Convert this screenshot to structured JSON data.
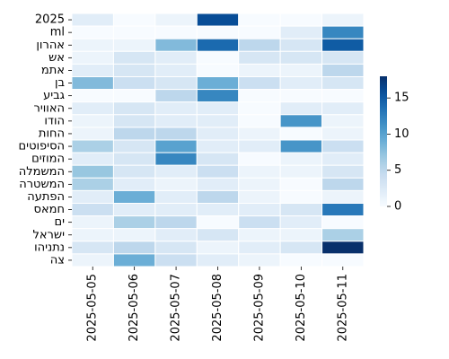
{
  "chart_data": {
    "type": "heatmap",
    "title": "",
    "xlabel": "",
    "ylabel": "",
    "columns": [
      "2025-05-05",
      "2025-05-06",
      "2025-05-07",
      "2025-05-08",
      "2025-05-09",
      "2025-05-10",
      "2025-05-11"
    ],
    "rows": [
      "2025",
      "ml",
      "אהרון",
      "אש",
      "אתמ",
      "בן",
      "גביע",
      "האוויר",
      "הודו",
      "החות",
      "הסיפוטים",
      "המוזים",
      "המשמלה",
      "המשטרה",
      "הפתעה",
      "חמאס",
      "ים",
      "ישראל",
      "נתניהו",
      "צה"
    ],
    "values": [
      [
        2,
        0,
        1,
        16,
        0,
        0,
        1
      ],
      [
        0,
        0,
        0,
        0,
        0,
        2,
        12
      ],
      [
        1,
        1,
        8,
        14,
        5,
        3,
        15
      ],
      [
        1,
        3,
        2,
        0,
        3,
        3,
        3
      ],
      [
        2,
        3,
        2,
        0,
        1,
        1,
        5
      ],
      [
        8,
        4,
        3,
        9,
        4,
        2,
        3
      ],
      [
        0,
        0,
        5,
        12,
        0,
        0,
        0
      ],
      [
        2,
        3,
        2,
        2,
        0,
        2,
        2
      ],
      [
        1,
        3,
        2,
        2,
        0,
        11,
        1
      ],
      [
        1,
        5,
        5,
        2,
        1,
        0,
        1
      ],
      [
        6,
        3,
        10,
        2,
        2,
        11,
        4
      ],
      [
        2,
        3,
        12,
        3,
        0,
        1,
        2
      ],
      [
        7,
        3,
        2,
        4,
        1,
        1,
        3
      ],
      [
        6,
        2,
        1,
        2,
        1,
        0,
        5
      ],
      [
        2,
        9,
        2,
        5,
        1,
        0,
        1
      ],
      [
        4,
        2,
        2,
        2,
        2,
        3,
        13
      ],
      [
        1,
        6,
        5,
        0,
        4,
        2,
        0
      ],
      [
        1,
        1,
        2,
        3,
        1,
        1,
        6
      ],
      [
        3,
        5,
        3,
        1,
        2,
        3,
        18
      ],
      [
        1,
        9,
        4,
        2,
        1,
        0,
        0
      ]
    ],
    "vmin": 0,
    "vmax": 18,
    "colorbar_ticks": [
      0,
      5,
      10,
      15
    ],
    "colormap": "Blues",
    "grid_lines": true
  }
}
